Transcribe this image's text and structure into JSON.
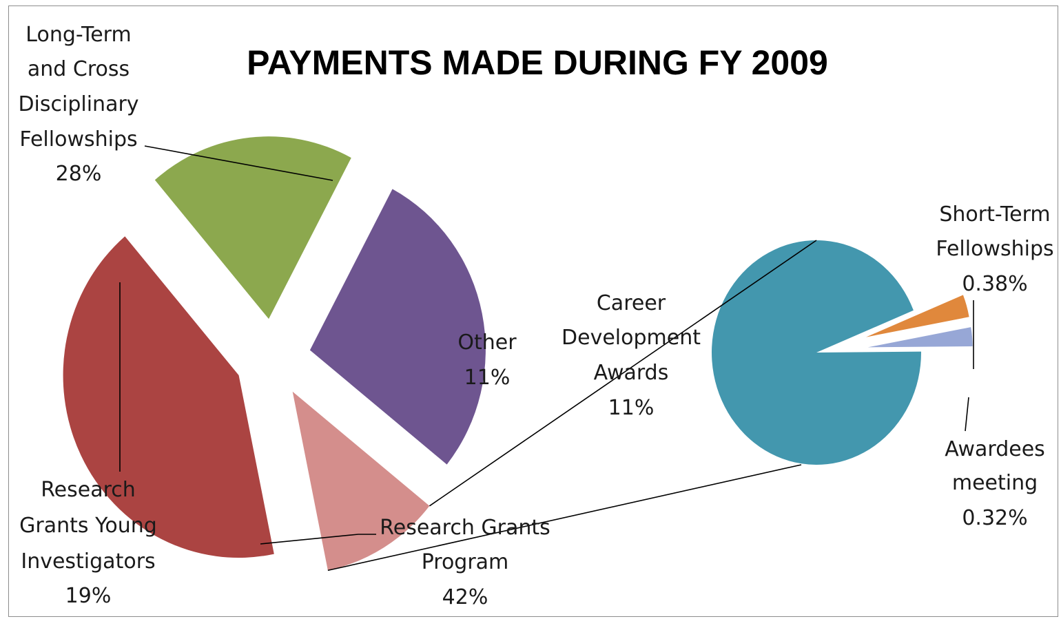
{
  "chart_data": {
    "type": "pie",
    "subtype": "pie-of-pie",
    "title": "PAYMENTS MADE DURING FY 2009",
    "main_pie": [
      {
        "label_lines": [
          "Long-Term",
          "and Cross",
          "Disciplinary",
          "Fellowships"
        ],
        "pct_label": "28%",
        "value": 28,
        "color": "#6e5590"
      },
      {
        "label_lines": [
          "Other"
        ],
        "pct_label": "11%",
        "value": 11,
        "color": "#d48e8c"
      },
      {
        "label_lines": [
          "Research Grants",
          "Program"
        ],
        "pct_label": "42%",
        "value": 42,
        "color": "#ab4442"
      },
      {
        "label_lines": [
          "Research",
          "Grants Young",
          "Investigators"
        ],
        "pct_label": "19%",
        "value": 19,
        "color": "#8ca84e"
      }
    ],
    "secondary_pie": {
      "breakdown_of": "Other",
      "slices": [
        {
          "label_lines": [
            "Career",
            "Development",
            "Awards"
          ],
          "pct_label": "11%",
          "value": 11,
          "color": "#4397ae"
        },
        {
          "label_lines": [
            "Short-Term",
            "Fellowships"
          ],
          "pct_label": "0.38%",
          "value": 0.38,
          "color": "#e0883c"
        },
        {
          "label_lines": [
            "Awardees",
            "meeting"
          ],
          "pct_label": "0.32%",
          "value": 0.32,
          "color": "#97a7d6"
        }
      ]
    }
  }
}
